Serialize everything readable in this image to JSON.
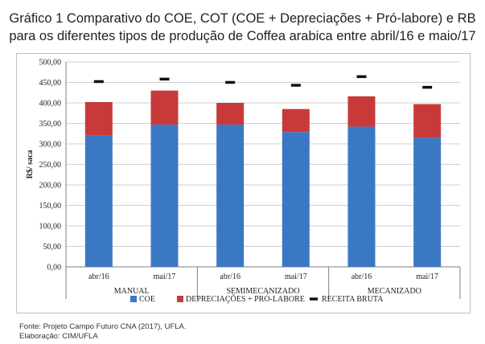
{
  "title_line1": "Gráfico 1 Comparativo do COE, COT (COE + Depreciações + Pró-labore) e RB",
  "title_line2": "para os diferentes tipos de produção de Coffea arabica entre abril/16 e maio/17",
  "footer_source": "Fonte: Projeto Campo Futuro CNA (2017), UFLA.",
  "footer_elaboration": "Elaboração: CIM/UFLA",
  "colors": {
    "coe": "#3b78c4",
    "depreciacoes": "#c83a3a",
    "receita": "#111111",
    "grid": "#d0d0d0",
    "axis": "#7f7f7f"
  },
  "chart_data": {
    "type": "bar",
    "stacked": true,
    "ylabel": "R$/ saca",
    "xlabel": "",
    "ylim": [
      0,
      500
    ],
    "ytick_step": 50,
    "ytick_labels": [
      "0,00",
      "50,00",
      "100,00",
      "150,00",
      "200,00",
      "250,00",
      "300,00",
      "350,00",
      "400,00",
      "450,00",
      "500,00"
    ],
    "grid": true,
    "legend": "bottom",
    "categories": [
      "abr/16",
      "mai/17",
      "abr/16",
      "mai/17",
      "abr/16",
      "mai/17"
    ],
    "groups": [
      {
        "label": "MANUAL",
        "span": 2
      },
      {
        "label": "SEMIMECANIZADO",
        "span": 2
      },
      {
        "label": "MECANIZADO",
        "span": 2
      }
    ],
    "series": [
      {
        "name": "COE",
        "kind": "bar",
        "values": [
          320,
          347,
          347,
          329,
          342,
          315
        ]
      },
      {
        "name": "DEPRECIAÇÕES + PRÓ-LABORE",
        "kind": "bar",
        "values": [
          82,
          83,
          53,
          56,
          74,
          82
        ]
      },
      {
        "name": "RECEITA BRUTA",
        "kind": "marker",
        "values": [
          452,
          458,
          450,
          443,
          464,
          438
        ]
      }
    ]
  }
}
